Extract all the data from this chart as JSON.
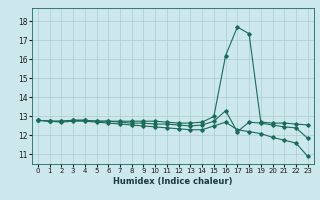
{
  "title": "",
  "xlabel": "Humidex (Indice chaleur)",
  "bg_color": "#cce8ec",
  "grid_color": "#aacccc",
  "line_color": "#1a6b5a",
  "xlim": [
    -0.5,
    23.5
  ],
  "ylim": [
    10.5,
    18.7
  ],
  "xticks": [
    0,
    1,
    2,
    3,
    4,
    5,
    6,
    7,
    8,
    9,
    10,
    11,
    12,
    13,
    14,
    15,
    16,
    17,
    18,
    19,
    20,
    21,
    22,
    23
  ],
  "yticks": [
    11,
    12,
    13,
    14,
    15,
    16,
    17,
    18
  ],
  "line1_x": [
    0,
    1,
    2,
    3,
    4,
    5,
    6,
    7,
    8,
    9,
    10,
    11,
    12,
    13,
    14,
    15,
    16,
    17,
    18,
    19,
    20,
    21,
    22,
    23
  ],
  "line1_y": [
    12.8,
    12.75,
    12.75,
    12.8,
    12.8,
    12.75,
    12.75,
    12.75,
    12.75,
    12.75,
    12.75,
    12.7,
    12.65,
    12.65,
    12.7,
    13.0,
    16.2,
    17.7,
    17.35,
    12.7,
    12.65,
    12.65,
    12.6,
    12.55
  ],
  "line2_x": [
    0,
    1,
    2,
    3,
    4,
    5,
    6,
    7,
    8,
    9,
    10,
    11,
    12,
    13,
    14,
    15,
    16,
    17,
    18,
    19,
    20,
    21,
    22,
    23
  ],
  "line2_y": [
    12.8,
    12.75,
    12.75,
    12.8,
    12.8,
    12.75,
    12.75,
    12.7,
    12.65,
    12.65,
    12.6,
    12.6,
    12.55,
    12.5,
    12.55,
    12.75,
    13.3,
    12.2,
    12.7,
    12.65,
    12.55,
    12.45,
    12.4,
    11.85
  ],
  "line3_x": [
    0,
    1,
    2,
    3,
    4,
    5,
    6,
    7,
    8,
    9,
    10,
    11,
    12,
    13,
    14,
    15,
    16,
    17,
    18,
    19,
    20,
    21,
    22,
    23
  ],
  "line3_y": [
    12.8,
    12.75,
    12.7,
    12.75,
    12.75,
    12.7,
    12.65,
    12.6,
    12.55,
    12.5,
    12.45,
    12.4,
    12.35,
    12.3,
    12.3,
    12.5,
    12.7,
    12.3,
    12.2,
    12.1,
    11.9,
    11.75,
    11.6,
    10.9
  ]
}
